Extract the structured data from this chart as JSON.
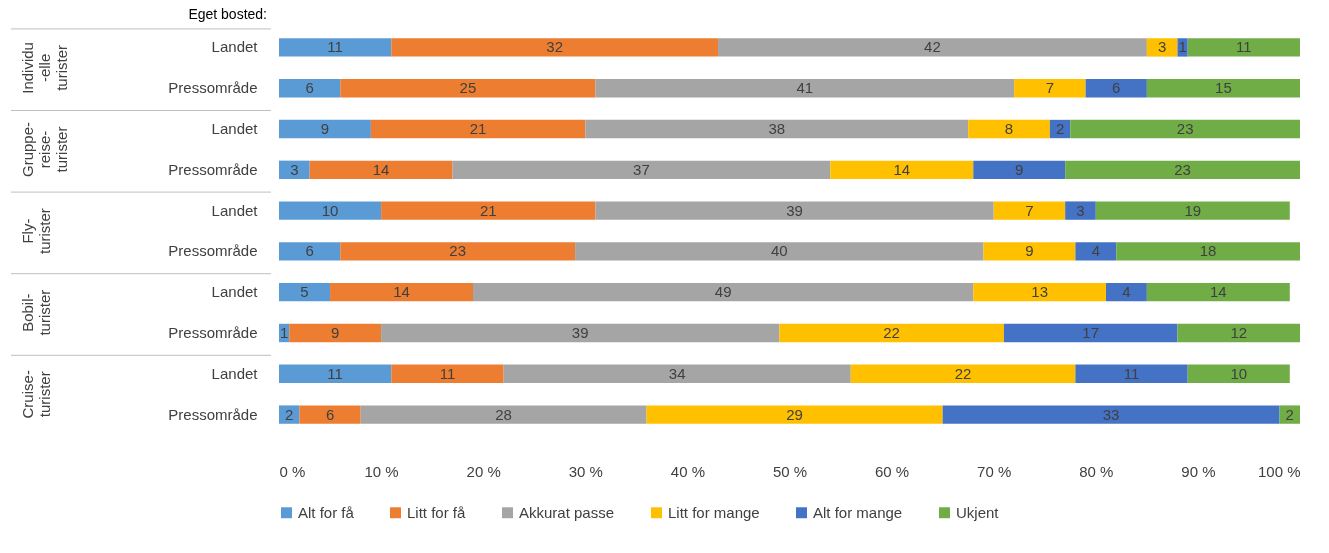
{
  "chart_data": {
    "type": "bar",
    "orientation": "horizontal",
    "stacked": true,
    "data_labels": true,
    "legend": "bottom",
    "grid": false,
    "categories": [
      "Landet",
      "Pressområde",
      "Landet",
      "Pressområde",
      "Landet",
      "Pressområde",
      "Landet",
      "Pressområde",
      "Landet",
      "Pressområde"
    ],
    "annotations": [
      "Eget bosted:",
      "Individu\n-elle\nturister",
      "Gruppe-\nreise-\nturister",
      "Fly-\nturister",
      "Bobil-\nturister",
      "Cruise-\nturister"
    ],
    "xlim": [
      0,
      100
    ],
    "xticks": [
      {
        "value": 0,
        "label": "0 %"
      },
      {
        "value": 10,
        "label": "10 %"
      },
      {
        "value": 20,
        "label": "20 %"
      },
      {
        "value": 30,
        "label": "30 %"
      },
      {
        "value": 40,
        "label": "40 %"
      },
      {
        "value": 50,
        "label": "50 %"
      },
      {
        "value": 60,
        "label": "60 %"
      },
      {
        "value": 70,
        "label": "70 %"
      },
      {
        "value": 80,
        "label": "80 %"
      },
      {
        "value": 90,
        "label": "90 %"
      },
      {
        "value": 100,
        "label": "100 %"
      }
    ],
    "series": [
      {
        "name": "Alt for få",
        "color": "#5b9bd5",
        "values": [
          11,
          6,
          9,
          3,
          10,
          6,
          5,
          1,
          11,
          2
        ]
      },
      {
        "name": "Litt for få",
        "color": "#ed7d31",
        "values": [
          32,
          25,
          21,
          14,
          21,
          23,
          14,
          9,
          11,
          6
        ]
      },
      {
        "name": "Akkurat passe",
        "color": "#a5a5a5",
        "values": [
          42,
          41,
          37.5,
          37,
          39,
          40,
          49,
          39,
          34,
          28
        ],
        "value_labels": [
          "42",
          "41",
          "38",
          "37",
          "39",
          "40",
          "49",
          "39",
          "34",
          "28"
        ]
      },
      {
        "name": "Litt for mange",
        "color": "#ffc000",
        "values": [
          3,
          7,
          8,
          14,
          7,
          9,
          13,
          22,
          22,
          29
        ]
      },
      {
        "name": "Alt for mange",
        "color": "#4472c4",
        "values": [
          1,
          6,
          2,
          9,
          3,
          4,
          4,
          17,
          11,
          33
        ]
      },
      {
        "name": "Ukjent",
        "color": "#70ad47",
        "values": [
          11,
          15,
          22.5,
          23,
          19,
          18,
          14,
          12,
          10,
          2
        ],
        "value_labels": [
          "11",
          "15",
          "23",
          "23",
          "19",
          "18",
          "14",
          "12",
          "10",
          "2"
        ]
      }
    ]
  }
}
